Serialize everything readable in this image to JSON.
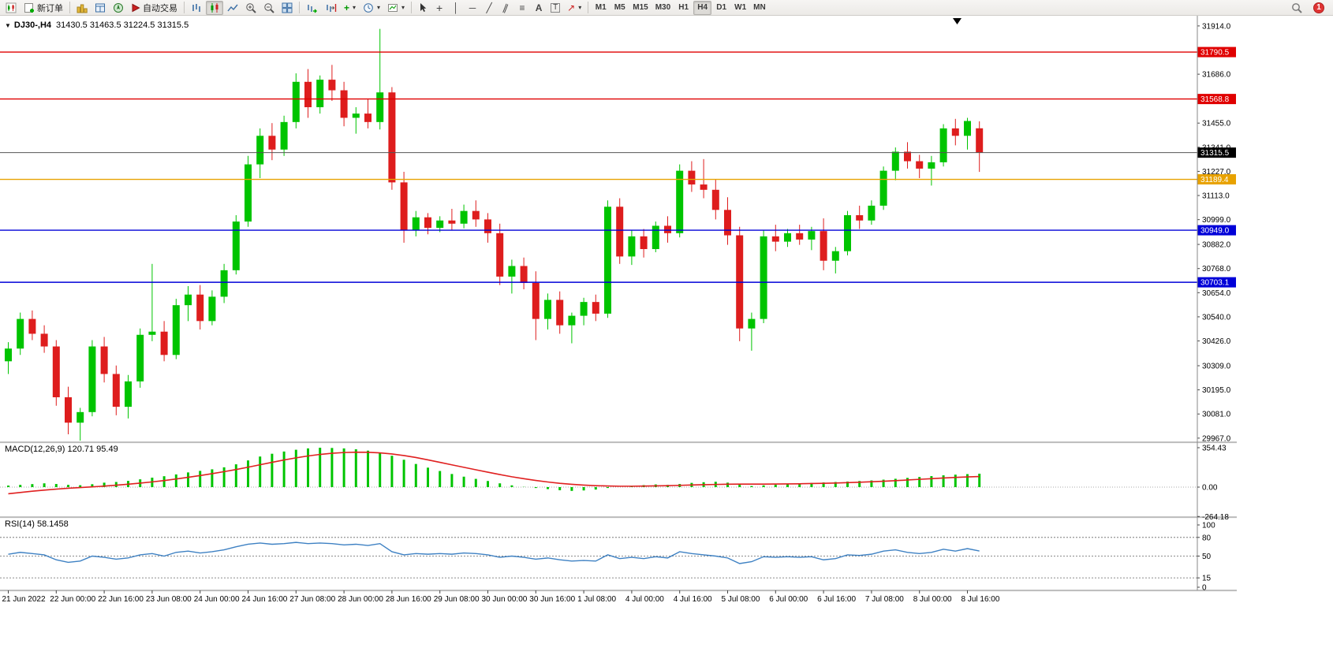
{
  "toolbar": {
    "new_order": "新订单",
    "autotrade": "自动交易",
    "timeframes": [
      "M1",
      "M5",
      "M15",
      "M30",
      "H1",
      "H4",
      "D1",
      "W1",
      "MN"
    ],
    "active_timeframe": "H4",
    "notification_count": "1",
    "icons": {
      "dropdown_arrow": "▾",
      "collapse_arrow": "▼",
      "crosshair": "+",
      "vertical_line": "│",
      "horizontal_line": "─",
      "trendline": "╱",
      "channel": "∥",
      "fibonacci": "≡",
      "text_tool": "A",
      "text_label_tool": "T",
      "arrows_tool": "↗"
    }
  },
  "chart_header": {
    "symbol": "DJ30-,H4",
    "ohlc": "31430.5 31463.5 31224.5 31315.5"
  },
  "indicators": {
    "macd_label": "MACD(12,26,9) 120.71 95.49",
    "rsi_label": "RSI(14) 58.1458"
  },
  "chart_data": {
    "type": "candlestick",
    "symbol": "DJ30-",
    "timeframe": "H4",
    "last_candle_ohlc": {
      "open": 31430.5,
      "high": 31463.5,
      "low": 31224.5,
      "close": 31315.5
    },
    "price_range": [
      29959,
      31962
    ],
    "grid": false,
    "colors": {
      "up": "#00C400",
      "down": "#DE1D1D",
      "rsi_line": "#3E81C3",
      "macd_signal": "#E02020"
    },
    "price_axis_ticks": [
      "31914.0",
      "31686.0",
      "31455.0",
      "31341.0",
      "31227.0",
      "31113.0",
      "30999.0",
      "30882.0",
      "30768.0",
      "30654.0",
      "30540.0",
      "30426.0",
      "30309.0",
      "30195.0",
      "30081.0",
      "29967.0"
    ],
    "levels": [
      {
        "price": 31790.5,
        "label": "31790.5",
        "color": "#E00000"
      },
      {
        "price": 31568.8,
        "label": "31568.8",
        "color": "#E00000"
      },
      {
        "price": 31315.5,
        "label": "31315.5",
        "color": "#000000",
        "line_color": "#555555",
        "current": true
      },
      {
        "price": 31189.4,
        "label": "31189.4",
        "color": "#E8A200"
      },
      {
        "price": 30949.0,
        "label": "30949.0",
        "color": "#0000D8"
      },
      {
        "price": 30703.1,
        "label": "30703.1",
        "color": "#0000D8"
      }
    ],
    "time_labels": [
      {
        "i": 0,
        "t": "21 Jun 2022"
      },
      {
        "i": 4,
        "t": "22 Jun 00:00"
      },
      {
        "i": 8,
        "t": "22 Jun 16:00"
      },
      {
        "i": 12,
        "t": "23 Jun 08:00"
      },
      {
        "i": 16,
        "t": "24 Jun 00:00"
      },
      {
        "i": 20,
        "t": "24 Jun 16:00"
      },
      {
        "i": 24,
        "t": "27 Jun 08:00"
      },
      {
        "i": 28,
        "t": "28 Jun 00:00"
      },
      {
        "i": 32,
        "t": "28 Jun 16:00"
      },
      {
        "i": 36,
        "t": "29 Jun 08:00"
      },
      {
        "i": 40,
        "t": "30 Jun 00:00"
      },
      {
        "i": 44,
        "t": "30 Jun 16:00"
      },
      {
        "i": 48,
        "t": "1 Jul 08:00"
      },
      {
        "i": 52,
        "t": "4 Jul 00:00"
      },
      {
        "i": 56,
        "t": "4 Jul 16:00"
      },
      {
        "i": 60,
        "t": "5 Jul 08:00"
      },
      {
        "i": 64,
        "t": "6 Jul 00:00"
      },
      {
        "i": 68,
        "t": "6 Jul 16:00"
      },
      {
        "i": 72,
        "t": "7 Jul 08:00"
      },
      {
        "i": 76,
        "t": "8 Jul 00:00"
      },
      {
        "i": 80,
        "t": "8 Jul 16:00"
      }
    ],
    "candles": [
      [
        30330,
        30420,
        30270,
        30390
      ],
      [
        30390,
        30560,
        30360,
        30530
      ],
      [
        30530,
        30570,
        30430,
        30460
      ],
      [
        30460,
        30500,
        30370,
        30400
      ],
      [
        30400,
        30430,
        30120,
        30160
      ],
      [
        30160,
        30210,
        29985,
        30040
      ],
      [
        30040,
        30110,
        29955,
        30090
      ],
      [
        30090,
        30430,
        30070,
        30400
      ],
      [
        30400,
        30445,
        30230,
        30270
      ],
      [
        30270,
        30310,
        30075,
        30115
      ],
      [
        30115,
        30265,
        30060,
        30235
      ],
      [
        30235,
        30485,
        30205,
        30455
      ],
      [
        30455,
        30790,
        30425,
        30470
      ],
      [
        30470,
        30520,
        30330,
        30360
      ],
      [
        30360,
        30625,
        30340,
        30595
      ],
      [
        30595,
        30685,
        30520,
        30645
      ],
      [
        30645,
        30690,
        30480,
        30520
      ],
      [
        30520,
        30665,
        30500,
        30635
      ],
      [
        30635,
        30790,
        30605,
        30760
      ],
      [
        30760,
        31020,
        30740,
        30990
      ],
      [
        30990,
        31300,
        30965,
        31260
      ],
      [
        31260,
        31430,
        31195,
        31395
      ],
      [
        31395,
        31455,
        31280,
        31330
      ],
      [
        31330,
        31490,
        31300,
        31460
      ],
      [
        31460,
        31690,
        31430,
        31650
      ],
      [
        31650,
        31710,
        31480,
        31530
      ],
      [
        31530,
        31680,
        31500,
        31660
      ],
      [
        31660,
        31730,
        31560,
        31610
      ],
      [
        31610,
        31650,
        31440,
        31480
      ],
      [
        31480,
        31530,
        31405,
        31500
      ],
      [
        31500,
        31570,
        31430,
        31460
      ],
      [
        31460,
        31900,
        31425,
        31600
      ],
      [
        31600,
        31625,
        31140,
        31175
      ],
      [
        31175,
        31225,
        30890,
        30950
      ],
      [
        30950,
        31040,
        30920,
        31010
      ],
      [
        31010,
        31030,
        30930,
        30960
      ],
      [
        30960,
        31015,
        30940,
        30995
      ],
      [
        30995,
        31050,
        30950,
        30980
      ],
      [
        30980,
        31070,
        30958,
        31040
      ],
      [
        31040,
        31090,
        30965,
        31000
      ],
      [
        31000,
        31030,
        30890,
        30935
      ],
      [
        30935,
        30980,
        30690,
        30730
      ],
      [
        30730,
        30810,
        30650,
        30780
      ],
      [
        30780,
        30820,
        30670,
        30700
      ],
      [
        30700,
        30755,
        30430,
        30530
      ],
      [
        30530,
        30650,
        30480,
        30620
      ],
      [
        30620,
        30660,
        30460,
        30500
      ],
      [
        30500,
        30560,
        30415,
        30545
      ],
      [
        30545,
        30630,
        30500,
        30610
      ],
      [
        30610,
        30645,
        30520,
        30555
      ],
      [
        30555,
        31090,
        30535,
        31060
      ],
      [
        31060,
        31100,
        30790,
        30825
      ],
      [
        30825,
        30950,
        30785,
        30920
      ],
      [
        30920,
        30955,
        30820,
        30860
      ],
      [
        30860,
        30990,
        30845,
        30970
      ],
      [
        30970,
        31015,
        30890,
        30935
      ],
      [
        30935,
        31260,
        30915,
        31230
      ],
      [
        31230,
        31275,
        31130,
        31165
      ],
      [
        31165,
        31285,
        31100,
        31140
      ],
      [
        31140,
        31190,
        31000,
        31045
      ],
      [
        31045,
        31105,
        30880,
        30925
      ],
      [
        30925,
        30965,
        30425,
        30485
      ],
      [
        30485,
        30560,
        30380,
        30530
      ],
      [
        30530,
        30950,
        30510,
        30920
      ],
      [
        30920,
        30975,
        30850,
        30895
      ],
      [
        30895,
        30955,
        30870,
        30935
      ],
      [
        30935,
        30975,
        30880,
        30905
      ],
      [
        30905,
        30965,
        30855,
        30945
      ],
      [
        30945,
        31005,
        30760,
        30805
      ],
      [
        30805,
        30870,
        30745,
        30850
      ],
      [
        30850,
        31040,
        30830,
        31020
      ],
      [
        31020,
        31065,
        30955,
        30995
      ],
      [
        30995,
        31090,
        30975,
        31065
      ],
      [
        31065,
        31250,
        31045,
        31230
      ],
      [
        31230,
        31340,
        31185,
        31320
      ],
      [
        31320,
        31365,
        31240,
        31275
      ],
      [
        31275,
        31305,
        31195,
        31240
      ],
      [
        31240,
        31300,
        31160,
        31270
      ],
      [
        31270,
        31450,
        31250,
        31430
      ],
      [
        31430,
        31475,
        31350,
        31395
      ],
      [
        31395,
        31480,
        31330,
        31465
      ],
      [
        31430.5,
        31463.5,
        31224.5,
        31315.5
      ]
    ],
    "macd": {
      "title": "MACD(12,26,9)",
      "value_main": 120.71,
      "value_signal": 95.49,
      "axis_ticks": [
        "354.43",
        "0.00",
        "-264.18"
      ],
      "histogram": [
        14,
        20,
        27,
        34,
        28,
        20,
        17,
        26,
        40,
        46,
        56,
        70,
        85,
        98,
        114,
        132,
        146,
        160,
        178,
        205,
        240,
        275,
        300,
        320,
        336,
        348,
        354,
        352,
        348,
        340,
        328,
        310,
        282,
        246,
        208,
        175,
        145,
        118,
        94,
        74,
        55,
        34,
        16,
        2,
        -8,
        -18,
        -28,
        -34,
        -30,
        -22,
        -8,
        0,
        10,
        18,
        24,
        20,
        28,
        38,
        44,
        48,
        40,
        24,
        10,
        16,
        22,
        28,
        34,
        38,
        42,
        46,
        50,
        55,
        60,
        67,
        75,
        83,
        91,
        99,
        106,
        112,
        117,
        120.71
      ],
      "signal": [
        -60,
        -48,
        -37,
        -27,
        -18,
        -10,
        -4,
        2,
        9,
        17,
        26,
        36,
        47,
        59,
        73,
        88,
        104,
        121,
        139,
        158,
        179,
        201,
        223,
        244,
        263,
        280,
        294,
        304,
        311,
        314,
        313,
        308,
        298,
        284,
        266,
        245,
        223,
        200,
        178,
        156,
        134,
        113,
        93,
        76,
        60,
        46,
        34,
        25,
        18,
        13,
        10,
        8,
        8,
        9,
        11,
        13,
        16,
        19,
        22,
        24,
        26,
        27,
        27,
        27,
        28,
        29,
        30,
        32,
        34,
        37,
        40,
        44,
        48,
        53,
        58,
        64,
        70,
        76,
        82,
        87,
        92,
        95.49
      ]
    },
    "rsi": {
      "title": "RSI(14)",
      "value": 58.1458,
      "axis_ticks": [
        "100",
        "80",
        "50",
        "15",
        "0"
      ],
      "levels": [
        80,
        50,
        15
      ],
      "values": [
        53,
        56,
        54,
        52,
        44,
        40,
        42,
        50,
        48,
        45,
        47,
        52,
        54,
        50,
        56,
        58,
        55,
        57,
        60,
        65,
        69,
        71,
        69,
        70,
        72,
        70,
        71,
        70,
        68,
        69,
        67,
        70,
        57,
        52,
        54,
        53,
        54,
        53,
        55,
        54,
        52,
        48,
        50,
        48,
        45,
        47,
        44,
        42,
        43,
        42,
        52,
        46,
        48,
        46,
        49,
        47,
        57,
        54,
        52,
        50,
        47,
        38,
        41,
        49,
        48,
        49,
        48,
        49,
        44,
        46,
        52,
        51,
        53,
        58,
        60,
        56,
        54,
        56,
        61,
        58,
        62,
        58.15
      ]
    }
  }
}
